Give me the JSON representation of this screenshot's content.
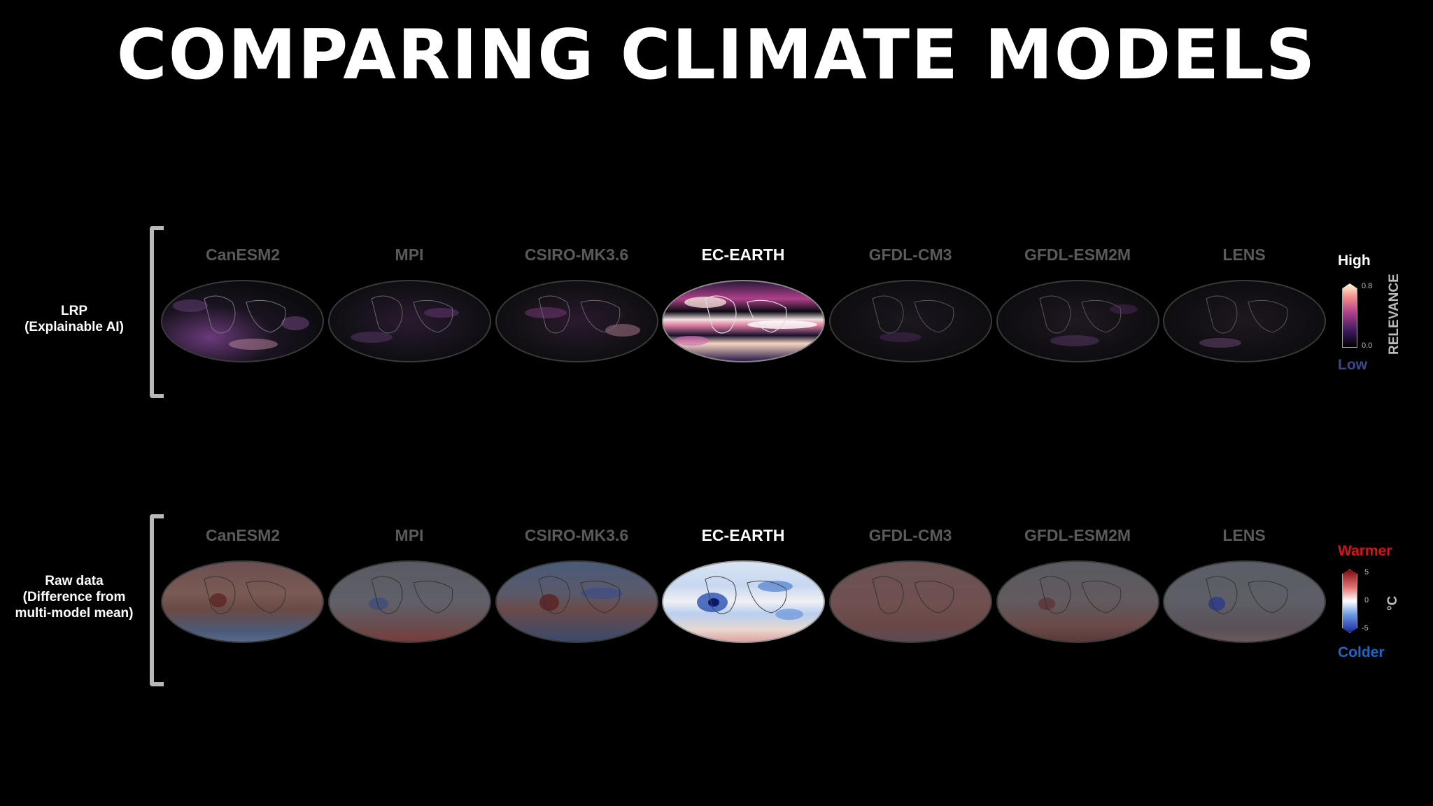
{
  "title": "COMPARING CLIMATE MODELS",
  "models": [
    "CanESM2",
    "MPI",
    "CSIRO-MK3.6",
    "EC-EARTH",
    "GFDL-CM3",
    "GFDL-ESM2M",
    "LENS"
  ],
  "highlighted_model": "EC-EARTH",
  "rows": {
    "lrp": {
      "label_line1": "LRP",
      "label_line2": "(Explainable AI)"
    },
    "raw": {
      "label_line1": "Raw data",
      "label_line2": "(Difference from",
      "label_line3": "multi-model mean)"
    }
  },
  "relevance_legend": {
    "high": "High",
    "low": "Low",
    "title": "RELEVANCE",
    "tick_max": "0.8",
    "tick_min": "0.0",
    "colors": [
      "#000000",
      "#3a1a5c",
      "#b0408a",
      "#f08a8a",
      "#fff5d6"
    ]
  },
  "temperature_legend": {
    "warm": "Warmer",
    "cold": "Colder",
    "unit": "°C",
    "tick_max": "5",
    "tick_mid": "0",
    "tick_min": "-5",
    "colors": [
      "#1a2a9a",
      "#6a98e0",
      "#ffffff",
      "#e07070",
      "#7a0a10"
    ]
  },
  "accent_colors": {
    "warm": "#d4141c",
    "cold": "#1f66c8",
    "low": "#3c4a8a",
    "inactive": "#5a5a5a"
  }
}
